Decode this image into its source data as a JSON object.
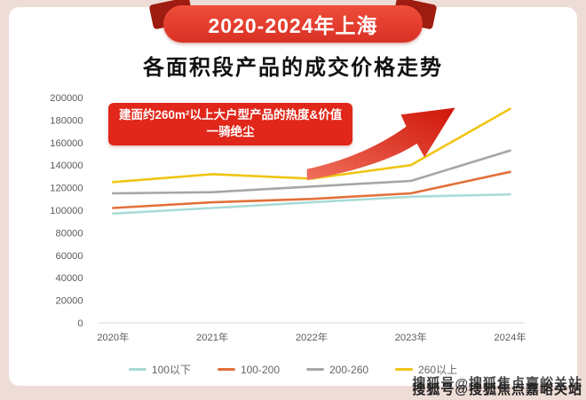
{
  "banner": {
    "label": "2020-2024年上海"
  },
  "title": "各面积段产品的成交价格走势",
  "annotation": {
    "line1": "建面约260m²以上大户型产品的热度&价值",
    "line2": "一骑绝尘"
  },
  "watermark": "搜狐号@搜狐焦点嘉峪关站",
  "theme": {
    "page_bg": "#eedcd6",
    "card_bg": "#ffffff",
    "banner_red": "#d93125",
    "banner_red_light": "#ef4d3a",
    "banner_dark": "#9e1c10",
    "annotation_red": "#e0271a",
    "arrow_red": "#cf1508",
    "arrow_light": "#f0705c",
    "text_dark": "#111111",
    "axis_text": "#5c5c5c",
    "legend_text": "#666666"
  },
  "chart_data": {
    "type": "line",
    "title": "2020-2024年上海各面积段产品的成交价格走势",
    "categories": [
      "2020年",
      "2021年",
      "2022年",
      "2023年",
      "2024年"
    ],
    "series": [
      {
        "name": "100以下",
        "color": "#a9dbd6",
        "values": [
          97000,
          102000,
          107000,
          112000,
          114000
        ]
      },
      {
        "name": "100-200",
        "color": "#e2703a",
        "values": [
          102000,
          107000,
          110000,
          115000,
          134000
        ]
      },
      {
        "name": "200-260",
        "color": "#a6a6a6",
        "values": [
          115000,
          116000,
          121000,
          126000,
          153000
        ]
      },
      {
        "name": "260以上",
        "color": "#f0c514",
        "values": [
          125000,
          132000,
          128000,
          140000,
          190000
        ]
      }
    ],
    "ylim": [
      0,
      200000
    ],
    "ytick_step": 20000,
    "xlabel": "",
    "ylabel": "",
    "grid": false,
    "legend_position": "bottom"
  }
}
